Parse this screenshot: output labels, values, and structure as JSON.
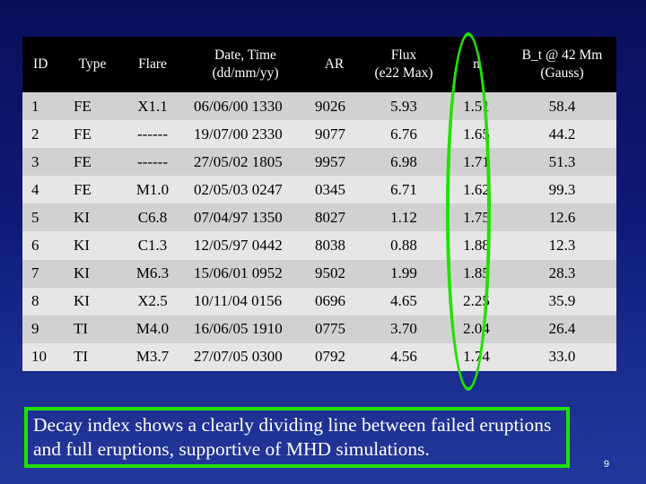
{
  "table": {
    "headers": [
      "ID",
      "Type",
      "Flare",
      "Date, Time",
      "AR",
      "Flux",
      "n",
      "B_t @ 42 Mm"
    ],
    "subheaders": [
      "",
      "",
      "",
      "(dd/mm/yy)",
      "",
      "(e22 Max)",
      "",
      "(Gauss)"
    ],
    "rows": [
      [
        "1",
        "FE",
        "X1.1",
        "06/06/00 1330",
        "9026",
        "5.93",
        "1.51",
        "58.4"
      ],
      [
        "2",
        "FE",
        "------",
        "19/07/00 2330",
        "9077",
        "6.76",
        "1.65",
        "44.2"
      ],
      [
        "3",
        "FE",
        "------",
        "27/05/02 1805",
        "9957",
        "6.98",
        "1.71",
        "51.3"
      ],
      [
        "4",
        "FE",
        "M1.0",
        "02/05/03 0247",
        "0345",
        "6.71",
        "1.62",
        "99.3"
      ],
      [
        "5",
        "KI",
        "C6.8",
        "07/04/97 1350",
        "8027",
        "1.12",
        "1.75",
        "12.6"
      ],
      [
        "6",
        "KI",
        "C1.3",
        "12/05/97 0442",
        "8038",
        "0.88",
        "1.88",
        "12.3"
      ],
      [
        "7",
        "KI",
        "M6.3",
        "15/06/01 0952",
        "9502",
        "1.99",
        "1.85",
        "28.3"
      ],
      [
        "8",
        "KI",
        "X2.5",
        "10/11/04 0156",
        "0696",
        "4.65",
        "2.25",
        "35.9"
      ],
      [
        "9",
        "TI",
        "M4.0",
        "16/06/05 1910",
        "0775",
        "3.70",
        "2.04",
        "26.4"
      ],
      [
        "10",
        "TI",
        "M3.7",
        "27/07/05 0300",
        "0792",
        "4.56",
        "1.74",
        "33.0"
      ]
    ]
  },
  "caption": "Decay index shows a clearly dividing line between failed eruptions and full eruptions, supportive of MHD simulations.",
  "page_number": "9",
  "colors": {
    "highlight": "#22e000",
    "header_bg": "#000000",
    "background": "#0f1a78"
  }
}
